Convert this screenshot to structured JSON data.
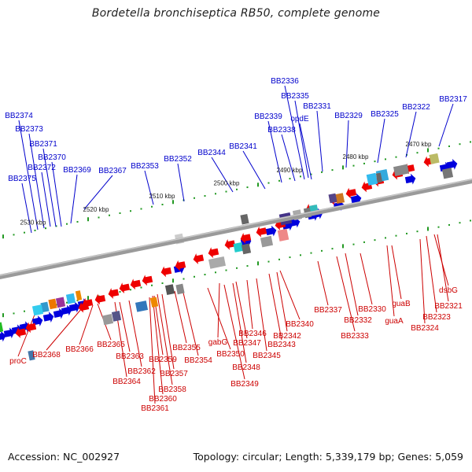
{
  "title": "Bordetella bronchiseptica RB50, complete genome",
  "accession": "Accession: NC_002927",
  "summary": "Topology: circular; Length: 5,339,179 bp; Genes: 5,059",
  "colors": {
    "forward": "#0000dd",
    "reverse": "#ee0000",
    "forward_label": "#0000cc",
    "reverse_label": "#cc0000",
    "backbone": "#777777",
    "tick": "#229922"
  },
  "kbp_labels": [
    "2470 kbp",
    "2480 kbp",
    "2490 kbp",
    "2500 kbp",
    "2510 kbp",
    "2520 kbp",
    "2530 kbp"
  ],
  "forward_genes": [
    "BB2317",
    "BB2322",
    "BB2325",
    "BB2329",
    "BB2331",
    "opdE",
    "BB2335",
    "BB2336",
    "BB2338",
    "BB2339",
    "BB2341",
    "BB2344",
    "BB2352",
    "BB2353",
    "BB2367",
    "BB2369",
    "BB2370",
    "BB2371",
    "BB2372",
    "BB2373",
    "BB2374",
    "BB2375"
  ],
  "reverse_genes": [
    "dsbG",
    "BB2321",
    "BB2323",
    "BB2324",
    "guaA",
    "guaB",
    "BB2330",
    "BB2332",
    "BB2333",
    "BB2337",
    "BB2340",
    "BB2342",
    "BB2343",
    "BB2345",
    "BB2346",
    "BB2347",
    "gabG",
    "BB2348",
    "BB2349",
    "BB2350",
    "BB2354",
    "BB2355",
    "BB2357",
    "BB2358",
    "BB2359",
    "BB2360",
    "BB2361",
    "BB2362",
    "BB2363",
    "BB2364",
    "BB2365",
    "BB2366",
    "BB2368",
    "proC"
  ]
}
